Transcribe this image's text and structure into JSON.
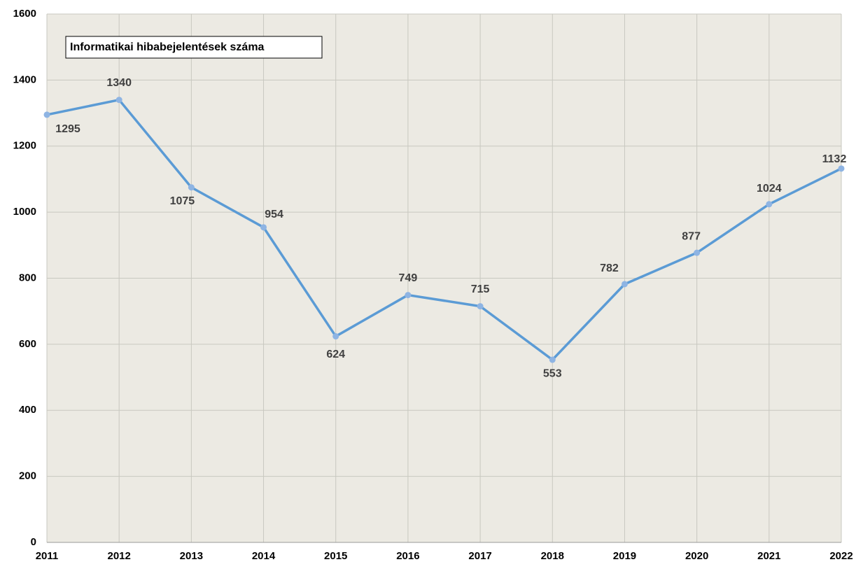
{
  "chart_data": {
    "type": "line",
    "title": "Informatikai hibabejelentések száma",
    "x": [
      2011,
      2012,
      2013,
      2014,
      2015,
      2016,
      2017,
      2018,
      2019,
      2020,
      2021,
      2022
    ],
    "series": [
      {
        "name": "Informatikai hibabejelentések száma",
        "color": "#5b9bd5",
        "marker_color": "#8eb4e3",
        "values": [
          1295,
          1340,
          1075,
          954,
          624,
          749,
          715,
          553,
          782,
          877,
          1024,
          1132
        ]
      }
    ],
    "xlim": [
      2011,
      2022
    ],
    "xticks": [
      2011,
      2012,
      2013,
      2014,
      2015,
      2016,
      2017,
      2018,
      2019,
      2020,
      2021,
      2022
    ],
    "ylim": [
      0,
      1600
    ],
    "yticks": [
      0,
      200,
      400,
      600,
      800,
      1000,
      1200,
      1400,
      1600
    ],
    "grid": true,
    "data_labels": true
  }
}
